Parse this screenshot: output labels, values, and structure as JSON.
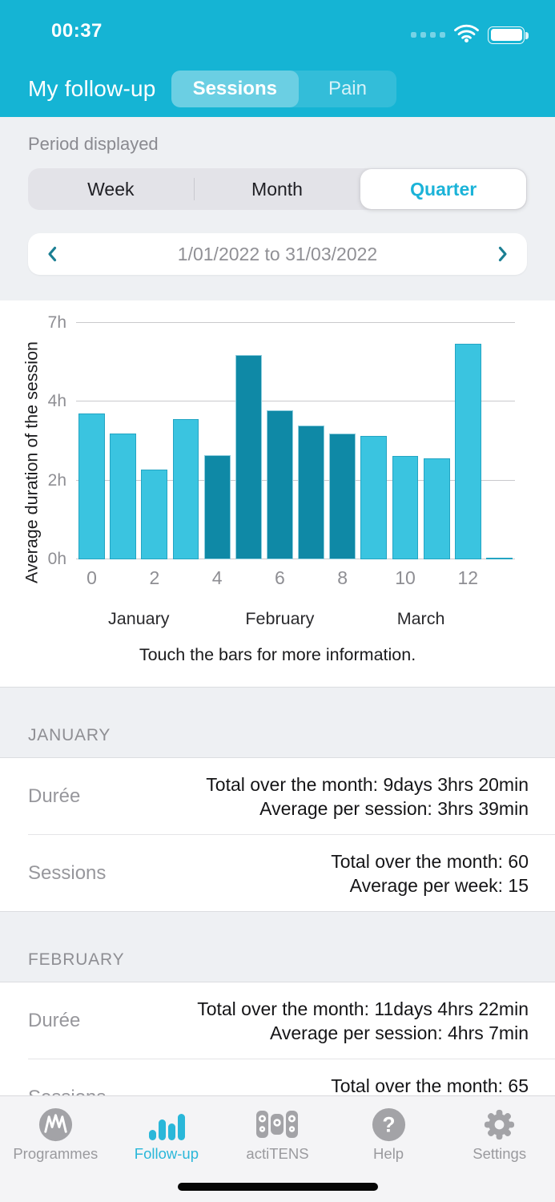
{
  "status_bar": {
    "time": "00:37"
  },
  "header": {
    "title": "My follow-up",
    "tabs": [
      {
        "label": "Sessions",
        "active": true
      },
      {
        "label": "Pain",
        "active": false
      }
    ]
  },
  "period": {
    "label": "Period displayed",
    "options": [
      {
        "label": "Week",
        "selected": false
      },
      {
        "label": "Month",
        "selected": false
      },
      {
        "label": "Quarter",
        "selected": true
      }
    ],
    "range": "1/01/2022 to 31/03/2022"
  },
  "chart_data": {
    "type": "bar",
    "ylabel": "Average duration of the session",
    "unit": "hours",
    "x": [
      0,
      1,
      2,
      3,
      4,
      5,
      6,
      7,
      8,
      9,
      10,
      11,
      12,
      13
    ],
    "values": [
      3.7,
      3.19,
      2.28,
      3.56,
      2.64,
      5.78,
      3.78,
      3.4,
      3.19,
      3.13,
      2.62,
      2.56,
      6.21,
      0.05
    ],
    "month_index": [
      0,
      0,
      0,
      0,
      1,
      1,
      1,
      1,
      1,
      2,
      2,
      2,
      2,
      2
    ],
    "month_colors": [
      "#3ac4e0",
      "#0f89a6",
      "#3ac4e0"
    ],
    "yticks": [
      {
        "value": 0,
        "label": "0h"
      },
      {
        "value": 2,
        "label": "2h"
      },
      {
        "value": 4,
        "label": "4h"
      },
      {
        "value": 7,
        "label": "7h"
      }
    ],
    "xticks": [
      {
        "index": 0,
        "label": "0"
      },
      {
        "index": 2,
        "label": "2"
      },
      {
        "index": 4,
        "label": "4"
      },
      {
        "index": 6,
        "label": "6"
      },
      {
        "index": 8,
        "label": "8"
      },
      {
        "index": 10,
        "label": "10"
      },
      {
        "index": 12,
        "label": "12"
      }
    ],
    "month_groups": [
      {
        "label": "January",
        "from": 0,
        "to": 3
      },
      {
        "label": "February",
        "from": 4,
        "to": 8
      },
      {
        "label": "March",
        "from": 9,
        "to": 12
      }
    ],
    "grid": true,
    "legend": false
  },
  "hint": "Touch the bars for more information.",
  "sections": [
    {
      "header": "JANUARY",
      "rows": [
        {
          "label": "Durée",
          "lines": [
            "Total over the month: 9days 3hrs 20min",
            "Average per session: 3hrs 39min"
          ]
        },
        {
          "label": "Sessions",
          "lines": [
            "Total over the month: 60",
            "Average per week: 15"
          ]
        }
      ]
    },
    {
      "header": "FEBRUARY",
      "rows": [
        {
          "label": "Durée",
          "lines": [
            "Total over the month: 11days 4hrs 22min",
            "Average per session: 4hrs 7min"
          ]
        },
        {
          "label": "Sessions",
          "lines": [
            "Total over the month: 65"
          ]
        }
      ]
    }
  ],
  "tab_bar": {
    "items": [
      {
        "label": "Programmes",
        "icon": "waveform-icon",
        "active": false
      },
      {
        "label": "Follow-up",
        "icon": "bar-chart-icon",
        "active": true
      },
      {
        "label": "actiTENS",
        "icon": "electrodes-icon",
        "active": false
      },
      {
        "label": "Help",
        "icon": "question-icon",
        "active": false
      },
      {
        "label": "Settings",
        "icon": "gear-icon",
        "active": false
      }
    ]
  },
  "colors": {
    "header_bg": "#15b4d4",
    "accent": "#1bb3d8",
    "bar_light": "#3ac4e0",
    "bar_dark": "#0f89a6",
    "chevron": "#1b7f93",
    "tab_active": "#2ab7d9"
  }
}
